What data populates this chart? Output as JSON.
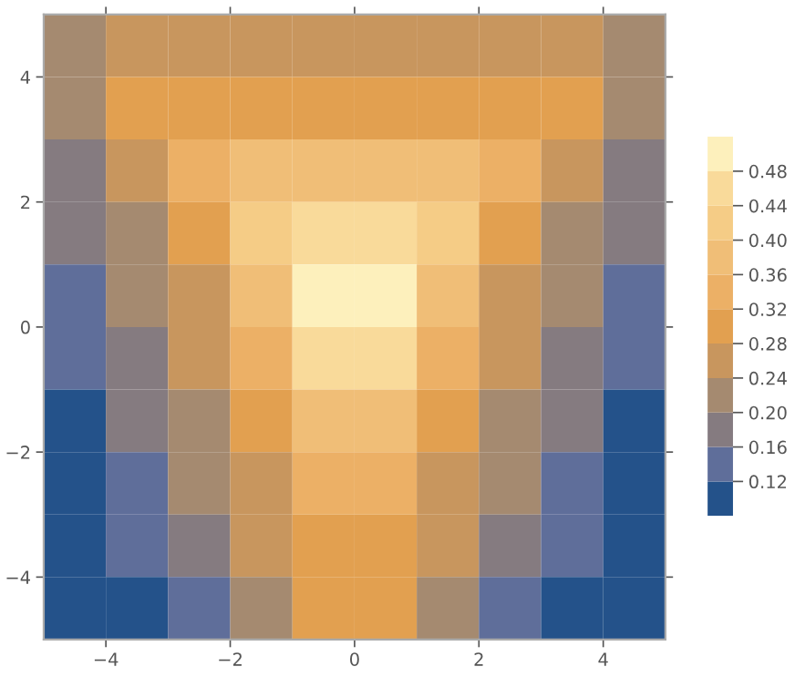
{
  "chart_data": {
    "type": "heatmap",
    "x": [
      -4.5,
      -3.5,
      -2.5,
      -1.5,
      -0.5,
      0.5,
      1.5,
      2.5,
      3.5,
      4.5
    ],
    "y": [
      4.5,
      3.5,
      2.5,
      1.5,
      0.5,
      -0.5,
      -1.5,
      -2.5,
      -3.5,
      -4.5
    ],
    "cells": [
      [
        0.22,
        0.26,
        0.26,
        0.26,
        0.26,
        0.26,
        0.26,
        0.26,
        0.26,
        0.22
      ],
      [
        0.22,
        0.3,
        0.3,
        0.3,
        0.3,
        0.3,
        0.3,
        0.3,
        0.3,
        0.22
      ],
      [
        0.18,
        0.26,
        0.34,
        0.38,
        0.38,
        0.38,
        0.38,
        0.34,
        0.26,
        0.18
      ],
      [
        0.18,
        0.22,
        0.3,
        0.42,
        0.46,
        0.46,
        0.42,
        0.3,
        0.22,
        0.18
      ],
      [
        0.14,
        0.22,
        0.26,
        0.38,
        0.5,
        0.5,
        0.38,
        0.26,
        0.22,
        0.14
      ],
      [
        0.14,
        0.18,
        0.26,
        0.34,
        0.46,
        0.46,
        0.34,
        0.26,
        0.18,
        0.14
      ],
      [
        0.1,
        0.18,
        0.22,
        0.3,
        0.38,
        0.38,
        0.3,
        0.22,
        0.18,
        0.1
      ],
      [
        0.1,
        0.14,
        0.22,
        0.26,
        0.34,
        0.34,
        0.26,
        0.22,
        0.14,
        0.1
      ],
      [
        0.1,
        0.14,
        0.18,
        0.26,
        0.3,
        0.3,
        0.26,
        0.18,
        0.14,
        0.1
      ],
      [
        0.1,
        0.1,
        0.14,
        0.22,
        0.3,
        0.3,
        0.22,
        0.14,
        0.1,
        0.1
      ]
    ],
    "colors": [
      "#24528a",
      "#5f6e9a",
      "#857b80",
      "#a58a70",
      "#c8965e",
      "#e2a050",
      "#ecb066",
      "#f0be77",
      "#f5cc86",
      "#f9da9a",
      "#fdf0bc"
    ],
    "clim": [
      0.08,
      0.52
    ],
    "cticks": [
      0.12,
      0.16,
      {
        "value": 0.2,
        "label": "0.20"
      },
      0.24,
      0.28,
      0.32,
      0.36,
      {
        "value": 0.4,
        "label": "0.40"
      },
      0.44,
      0.48
    ],
    "xlim": [
      -5,
      5
    ],
    "ylim": [
      -5,
      5
    ],
    "xticks": [
      -4,
      -2,
      0,
      2,
      4
    ],
    "yticks": [
      -4,
      -2,
      0,
      2,
      4
    ],
    "grid": false
  }
}
